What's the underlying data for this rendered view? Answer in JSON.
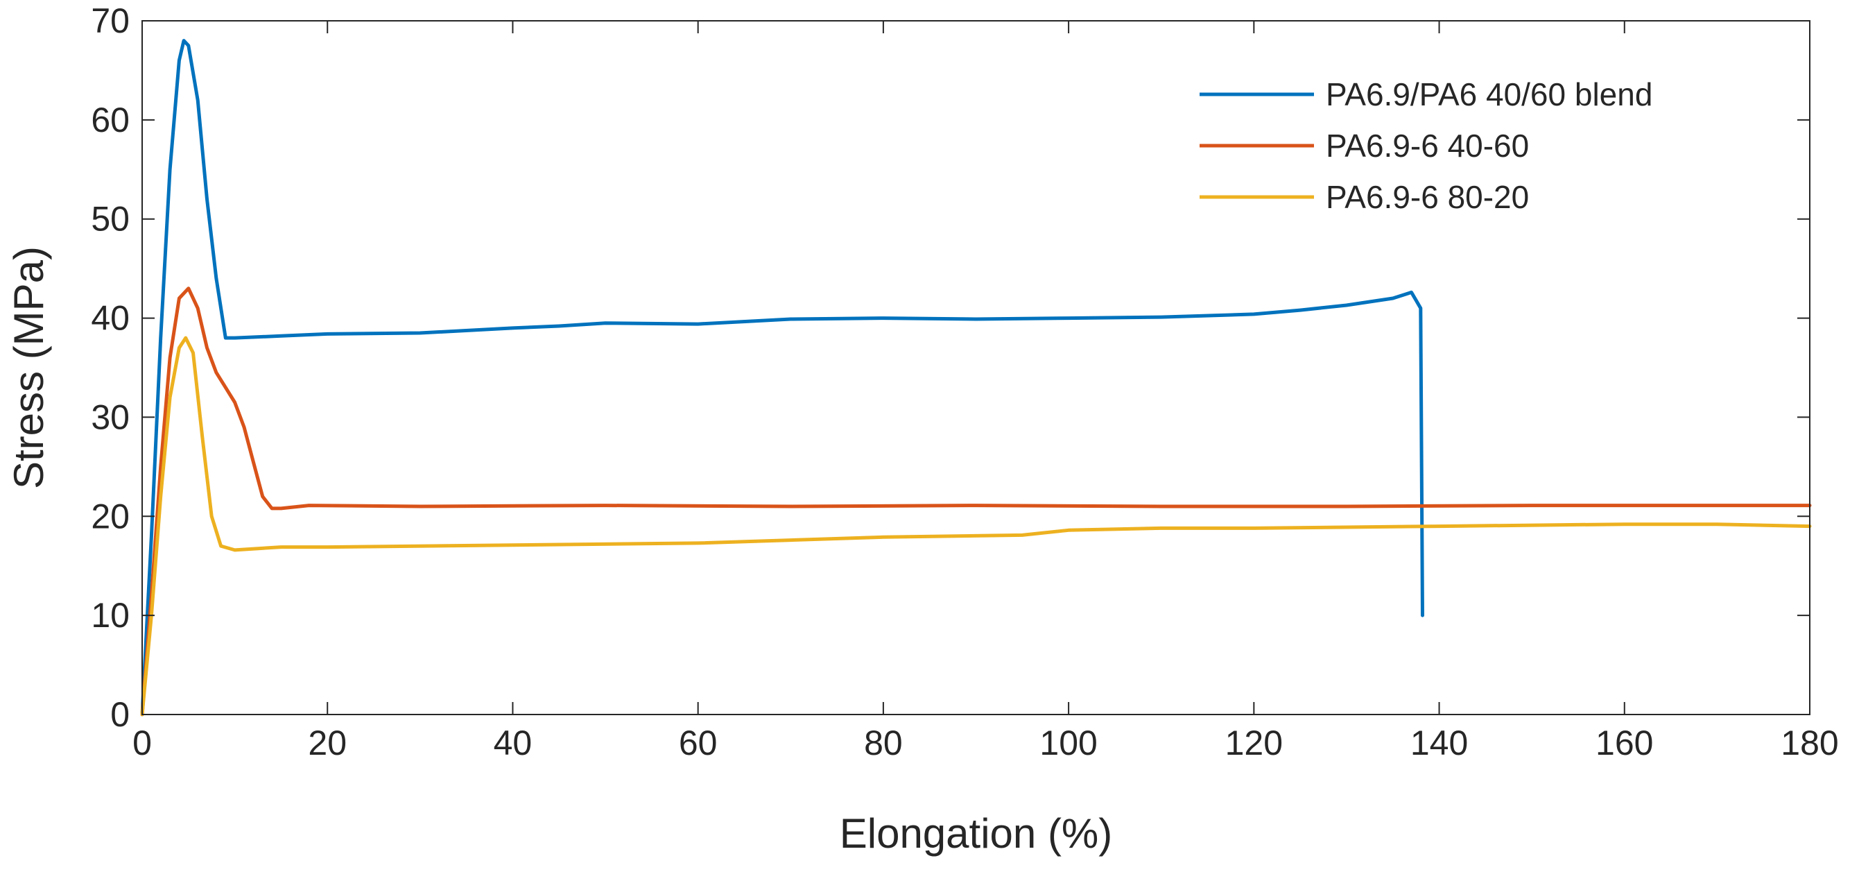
{
  "chart_data": {
    "type": "line",
    "title": "",
    "xlabel": "Elongation (%)",
    "ylabel": "Stress (MPa)",
    "xlim": [
      0,
      180
    ],
    "ylim": [
      0,
      70
    ],
    "xticks": [
      0,
      20,
      40,
      60,
      80,
      100,
      120,
      140,
      160,
      180
    ],
    "yticks": [
      0,
      10,
      20,
      30,
      40,
      50,
      60,
      70
    ],
    "xtick_labels": [
      "0",
      "20",
      "40",
      "60",
      "80",
      "100",
      "120",
      "140",
      "160",
      "180"
    ],
    "ytick_labels": [
      "0",
      "10",
      "20",
      "30",
      "40",
      "50",
      "60",
      "70"
    ],
    "grid": false,
    "legend_position": "top-right",
    "series": [
      {
        "name": "PA6.9/PA6 40/60 blend",
        "color": "#0072BD",
        "points": [
          [
            0,
            0
          ],
          [
            1,
            18
          ],
          [
            2,
            38
          ],
          [
            3,
            55
          ],
          [
            4,
            66
          ],
          [
            4.5,
            68
          ],
          [
            5,
            67.5
          ],
          [
            6,
            62
          ],
          [
            7,
            52
          ],
          [
            8,
            44
          ],
          [
            9,
            38
          ],
          [
            10,
            38
          ],
          [
            15,
            38.2
          ],
          [
            20,
            38.4
          ],
          [
            30,
            38.5
          ],
          [
            40,
            39
          ],
          [
            45,
            39.2
          ],
          [
            50,
            39.5
          ],
          [
            60,
            39.4
          ],
          [
            70,
            39.9
          ],
          [
            80,
            40
          ],
          [
            90,
            39.9
          ],
          [
            100,
            40
          ],
          [
            110,
            40.1
          ],
          [
            120,
            40.4
          ],
          [
            125,
            40.8
          ],
          [
            130,
            41.3
          ],
          [
            135,
            42
          ],
          [
            137,
            42.6
          ],
          [
            138,
            41
          ],
          [
            138.1,
            25
          ],
          [
            138.2,
            10
          ]
        ]
      },
      {
        "name": "PA6.9-6 40-60",
        "color": "#D95319",
        "points": [
          [
            0,
            0
          ],
          [
            1,
            12
          ],
          [
            2,
            25
          ],
          [
            3,
            36
          ],
          [
            4,
            42
          ],
          [
            5,
            43
          ],
          [
            6,
            41
          ],
          [
            7,
            37
          ],
          [
            8,
            34.5
          ],
          [
            9,
            33
          ],
          [
            10,
            31.5
          ],
          [
            11,
            29
          ],
          [
            12,
            25.5
          ],
          [
            13,
            22
          ],
          [
            14,
            20.8
          ],
          [
            15,
            20.8
          ],
          [
            18,
            21.1
          ],
          [
            30,
            21
          ],
          [
            50,
            21.1
          ],
          [
            70,
            21
          ],
          [
            90,
            21.1
          ],
          [
            110,
            21
          ],
          [
            130,
            21
          ],
          [
            150,
            21.1
          ],
          [
            180,
            21.1
          ]
        ]
      },
      {
        "name": "PA6.9-6 80-20",
        "color": "#EDB120",
        "points": [
          [
            0,
            0
          ],
          [
            1,
            10
          ],
          [
            2,
            22
          ],
          [
            3,
            32
          ],
          [
            4,
            37
          ],
          [
            4.7,
            38
          ],
          [
            5.5,
            36.5
          ],
          [
            6.5,
            28
          ],
          [
            7.5,
            20
          ],
          [
            8.5,
            17
          ],
          [
            10,
            16.6
          ],
          [
            15,
            16.9
          ],
          [
            20,
            16.9
          ],
          [
            40,
            17.1
          ],
          [
            60,
            17.3
          ],
          [
            80,
            17.9
          ],
          [
            95,
            18.1
          ],
          [
            100,
            18.6
          ],
          [
            110,
            18.8
          ],
          [
            120,
            18.8
          ],
          [
            140,
            19
          ],
          [
            160,
            19.2
          ],
          [
            170,
            19.2
          ],
          [
            180,
            19
          ]
        ]
      }
    ]
  }
}
